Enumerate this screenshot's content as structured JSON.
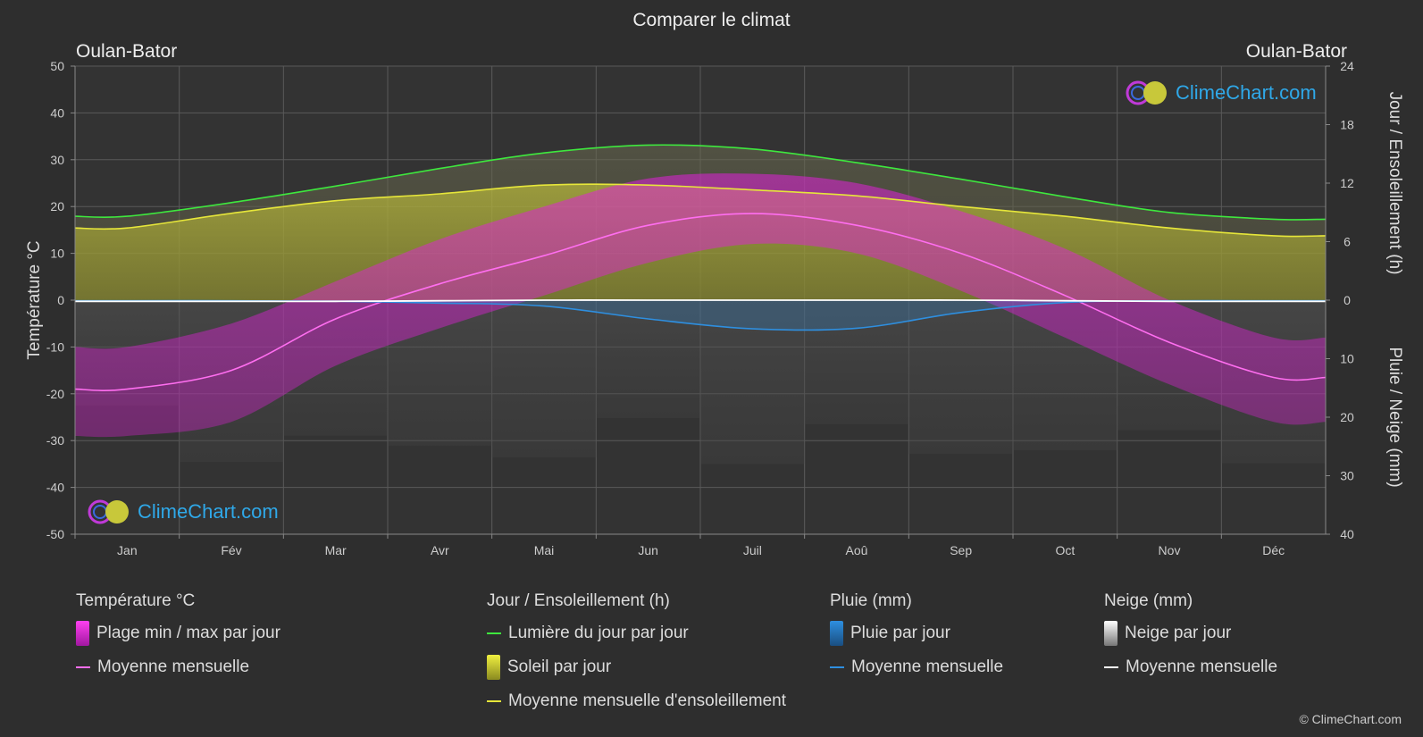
{
  "title": "Comparer le climat",
  "location_left": "Oulan-Bator",
  "location_right": "Oulan-Bator",
  "brand": "ClimeChart.com",
  "copyright": "© ClimeChart.com",
  "colors": {
    "background": "#2e2e2e",
    "daylight": "#3ee83e",
    "sunshine": "#e6e63a",
    "temp_mean": "#ff6ef0",
    "temp_range": "#e020d8",
    "rain": "#2e8fe0",
    "snow": "#ffffff",
    "brand": "#2fa8e8"
  },
  "chart_data": {
    "type": "area",
    "months": [
      "Jan",
      "Fév",
      "Mar",
      "Avr",
      "Mai",
      "Jun",
      "Juil",
      "Aoû",
      "Sep",
      "Oct",
      "Nov",
      "Déc"
    ],
    "axes": {
      "left": {
        "label": "Température °C",
        "ticks": [
          50,
          40,
          30,
          20,
          10,
          0,
          -10,
          -20,
          -30,
          -40,
          -50
        ],
        "range": [
          -50,
          50
        ]
      },
      "right_top": {
        "label": "Jour / Ensoleillement (h)",
        "ticks": [
          24,
          18,
          12,
          6,
          0
        ],
        "range": [
          0,
          24
        ]
      },
      "right_bottom": {
        "label": "Pluie / Neige (mm)",
        "ticks": [
          0,
          10,
          20,
          30,
          40
        ],
        "range": [
          0,
          40
        ]
      }
    },
    "grid": true,
    "series": [
      {
        "name": "Lumière du jour par jour",
        "axis": "right_top",
        "values": [
          8.6,
          10.0,
          11.7,
          13.5,
          15.1,
          15.9,
          15.5,
          14.1,
          12.4,
          10.6,
          9.0,
          8.3
        ]
      },
      {
        "name": "Moyenne mensuelle d'ensoleillement",
        "axis": "right_top",
        "values": [
          7.4,
          8.9,
          10.2,
          10.9,
          11.8,
          11.8,
          11.3,
          10.7,
          9.6,
          8.6,
          7.4,
          6.6
        ]
      },
      {
        "name": "Moyenne mensuelle",
        "kind": "temperature_mean",
        "axis": "left",
        "values": [
          -19.0,
          -15.0,
          -4.0,
          3.5,
          9.5,
          16.0,
          18.5,
          16.0,
          10.0,
          1.0,
          -9.0,
          -16.5
        ]
      },
      {
        "name": "Plage min / max par jour",
        "kind": "temperature_range",
        "axis": "left",
        "max": [
          -10,
          -5,
          4,
          13,
          20,
          26,
          27,
          25,
          19,
          11,
          0,
          -8
        ],
        "min": [
          -29,
          -26,
          -14,
          -6,
          1,
          8,
          12,
          10,
          2,
          -8,
          -18,
          -26
        ]
      },
      {
        "name": "Moyenne mensuelle",
        "kind": "rain_mean",
        "axis": "right_bottom",
        "values": [
          0.1,
          0.1,
          0.2,
          0.5,
          1.0,
          3.2,
          4.9,
          4.8,
          2.1,
          0.4,
          0.1,
          0.1
        ]
      },
      {
        "name": "Moyenne mensuelle",
        "kind": "snow_mean",
        "axis": "right_bottom",
        "values": [
          0.2,
          0.2,
          0.2,
          0.1,
          0.0,
          0.0,
          0.0,
          0.0,
          0.0,
          0.1,
          0.2,
          0.2
        ]
      }
    ]
  },
  "legend": {
    "temperature": {
      "title": "Température °C",
      "items": [
        "Plage min / max par jour",
        "Moyenne mensuelle"
      ]
    },
    "sun": {
      "title": "Jour / Ensoleillement (h)",
      "items": [
        "Lumière du jour par jour",
        "Soleil par jour",
        "Moyenne mensuelle d'ensoleillement"
      ]
    },
    "rain": {
      "title": "Pluie (mm)",
      "items": [
        "Pluie par jour",
        "Moyenne mensuelle"
      ]
    },
    "snow": {
      "title": "Neige (mm)",
      "items": [
        "Neige par jour",
        "Moyenne mensuelle"
      ]
    }
  }
}
